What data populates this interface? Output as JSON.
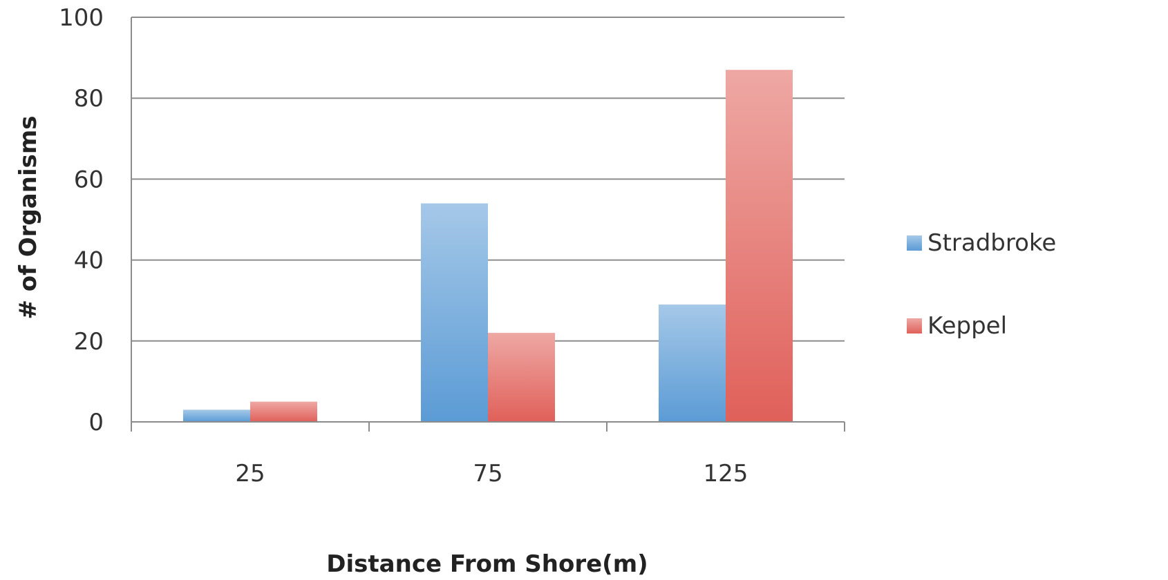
{
  "chart_data": {
    "type": "bar",
    "title": "",
    "xlabel": "Distance From Shore(m)",
    "ylabel": "# of Organisms",
    "categories": [
      "25",
      "75",
      "125"
    ],
    "series": [
      {
        "name": "Stradbroke",
        "values": [
          3,
          54,
          29
        ],
        "color": "#5b9bd5"
      },
      {
        "name": "Keppel",
        "values": [
          5,
          22,
          87
        ],
        "color": "#e0605a"
      }
    ],
    "ylim": [
      0,
      100
    ],
    "yticks": [
      0,
      20,
      40,
      60,
      80,
      100
    ],
    "grid": true,
    "legend_position": "right"
  }
}
